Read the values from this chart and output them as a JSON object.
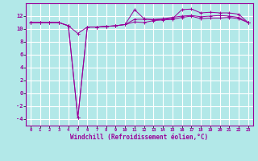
{
  "xlabel": "Windchill (Refroidissement éolien,°C)",
  "background_color": "#b2e8e8",
  "grid_color": "#ffffff",
  "line_color": "#990099",
  "x_hours": [
    0,
    1,
    2,
    3,
    4,
    5,
    6,
    7,
    8,
    9,
    10,
    11,
    12,
    13,
    14,
    15,
    16,
    17,
    18,
    19,
    20,
    21,
    22,
    23
  ],
  "series1": [
    11.0,
    11.0,
    11.0,
    11.0,
    10.5,
    9.3,
    10.3,
    10.3,
    10.4,
    10.5,
    10.7,
    11.1,
    11.0,
    11.3,
    11.4,
    11.5,
    11.8,
    12.0,
    11.6,
    11.7,
    11.7,
    11.8,
    11.6,
    11.0
  ],
  "series2": [
    11.0,
    11.0,
    11.0,
    11.0,
    10.5,
    -3.8,
    10.3,
    10.3,
    10.4,
    10.5,
    10.7,
    13.0,
    11.6,
    11.4,
    11.5,
    11.6,
    13.0,
    13.1,
    12.5,
    12.6,
    12.5,
    12.5,
    12.3,
    11.0
  ],
  "series3": [
    11.0,
    11.0,
    11.0,
    11.0,
    10.5,
    -3.8,
    10.3,
    10.3,
    10.4,
    10.5,
    10.7,
    11.5,
    11.5,
    11.5,
    11.6,
    11.8,
    12.0,
    12.1,
    11.9,
    12.0,
    12.1,
    12.0,
    11.8,
    11.0
  ],
  "ylim": [
    -5,
    14
  ],
  "xlim": [
    -0.5,
    23.5
  ],
  "yticks": [
    -4,
    -2,
    0,
    2,
    4,
    6,
    8,
    10,
    12
  ],
  "xticks": [
    0,
    1,
    2,
    3,
    4,
    5,
    6,
    7,
    8,
    9,
    10,
    11,
    12,
    13,
    14,
    15,
    16,
    17,
    18,
    19,
    20,
    21,
    22,
    23
  ],
  "xlabel_fontsize": 5.5,
  "ylabel_fontsize": 5.5,
  "tick_fontsize_x": 4.0,
  "tick_fontsize_y": 5.0
}
